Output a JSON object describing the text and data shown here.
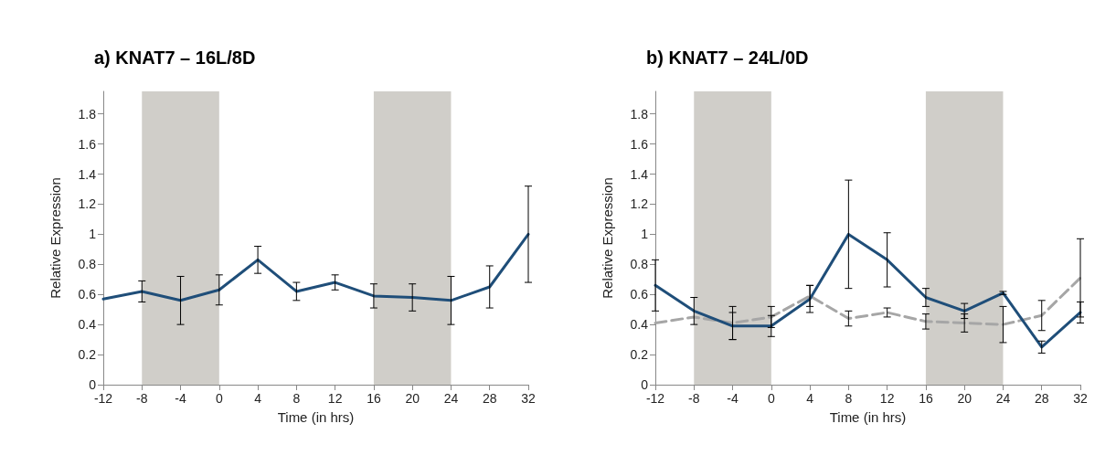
{
  "chart_data": [
    {
      "type": "line",
      "title": "a) KNAT7 – 16L/8D",
      "xlabel": "Time (in hrs)",
      "ylabel": "Relative Expression",
      "xlim": [
        -12,
        32
      ],
      "xticks": [
        -12,
        -8,
        -4,
        0,
        4,
        8,
        12,
        16,
        20,
        24,
        28,
        32
      ],
      "ylim": [
        0,
        1.95
      ],
      "yticks": [
        0,
        0.2,
        0.4,
        0.6,
        0.8,
        1,
        1.2,
        1.4,
        1.6,
        1.8
      ],
      "grid": false,
      "marker": "none",
      "bands": [
        {
          "axis": "x",
          "from": -8,
          "to": 0,
          "color": "#d0cec9"
        },
        {
          "axis": "x",
          "from": 16,
          "to": 24,
          "color": "#d0cec9"
        }
      ],
      "series": [
        {
          "color": "#1f4e79",
          "line_style": "solid",
          "x": [
            -12,
            -8,
            -4,
            0,
            4,
            8,
            12,
            16,
            20,
            24,
            28,
            32
          ],
          "values": [
            0.57,
            0.62,
            0.56,
            0.63,
            0.83,
            0.62,
            0.68,
            0.59,
            0.58,
            0.56,
            0.65,
            1.0
          ],
          "errors": [
            null,
            0.07,
            0.16,
            0.1,
            0.09,
            0.06,
            0.05,
            0.08,
            0.09,
            0.16,
            0.14,
            0.32
          ]
        }
      ]
    },
    {
      "type": "line",
      "title": "b) KNAT7 – 24L/0D",
      "xlabel": "Time (in hrs)",
      "ylabel": "Relative Expression",
      "xlim": [
        -12,
        32
      ],
      "xticks": [
        -12,
        -8,
        -4,
        0,
        4,
        8,
        12,
        16,
        20,
        24,
        28,
        32
      ],
      "ylim": [
        0,
        1.95
      ],
      "yticks": [
        0,
        0.2,
        0.4,
        0.6,
        0.8,
        1,
        1.2,
        1.4,
        1.6,
        1.8
      ],
      "grid": false,
      "marker": "none",
      "bands": [
        {
          "axis": "x",
          "from": -8,
          "to": 0,
          "color": "#d0cec9"
        },
        {
          "axis": "x",
          "from": 16,
          "to": 24,
          "color": "#d0cec9"
        }
      ],
      "series": [
        {
          "color": "#a6a6a6",
          "line_style": "dashed",
          "x": [
            -12,
            -8,
            -4,
            0,
            4,
            8,
            12,
            16,
            20,
            24,
            28,
            32
          ],
          "values": [
            0.41,
            0.45,
            0.41,
            0.45,
            0.59,
            0.44,
            0.48,
            0.42,
            0.41,
            0.4,
            0.46,
            0.71
          ],
          "errors": [
            null,
            null,
            0.11,
            0.07,
            0.07,
            0.05,
            0.03,
            0.05,
            0.06,
            0.12,
            0.1,
            0.26
          ]
        },
        {
          "color": "#1f4e79",
          "line_style": "solid",
          "x": [
            -12,
            -8,
            -4,
            0,
            4,
            8,
            12,
            16,
            20,
            24,
            28,
            32
          ],
          "values": [
            0.66,
            0.49,
            0.39,
            0.39,
            0.57,
            1.0,
            0.83,
            0.58,
            0.49,
            0.61,
            0.25,
            0.48
          ],
          "errors": [
            0.17,
            0.09,
            0.09,
            0.07,
            0.09,
            0.36,
            0.18,
            0.06,
            0.05,
            0.01,
            0.04,
            0.07
          ]
        }
      ]
    }
  ]
}
